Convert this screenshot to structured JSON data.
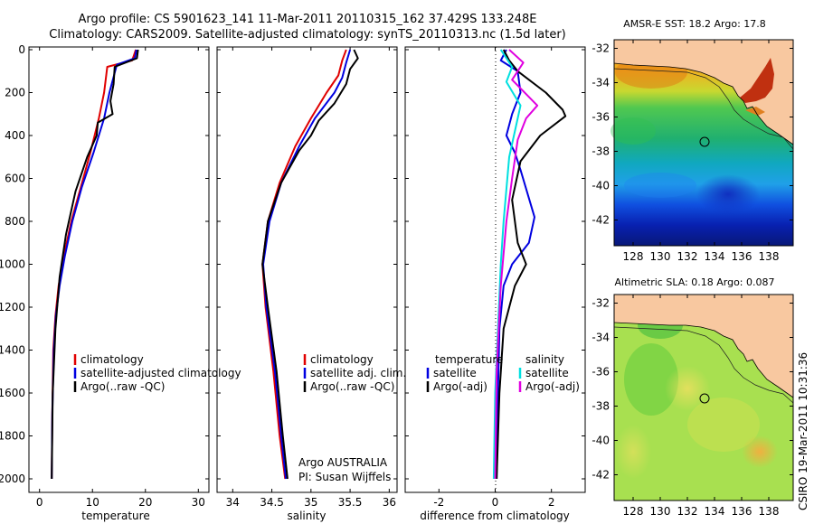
{
  "title": {
    "line1": "Argo profile: CS 5901623_141 11-Mar-2011 20110315_162 37.429S 133.248E",
    "line2": "Climatology: CARS2009. Satellite-adjusted climatology: synTS_20110313.nc (1.5d later)"
  },
  "panels": {
    "temperature": {
      "xlabel": "temperature",
      "xticks": [
        "0",
        "10",
        "20",
        "30"
      ],
      "legend": [
        "climatology",
        "satellite-adjusted climatology",
        "Argo(..raw -QC)"
      ]
    },
    "salinity": {
      "xlabel": "salinity",
      "xticks": [
        "34",
        "34.5",
        "35",
        "35.5",
        "36"
      ],
      "legend": [
        "climatology",
        "satellite adj. clim.",
        "Argo(..raw -QC)"
      ],
      "note1": "Argo AUSTRALIA",
      "note2": "PI: Susan Wijffels"
    },
    "difference": {
      "xlabel": "difference from climatology",
      "xticks": [
        "-2",
        "0",
        "2"
      ],
      "legend_temp_head": "temperature",
      "legend_temp": [
        "satellite",
        "Argo(-adj)"
      ],
      "legend_sal_head": "salinity",
      "legend_sal": [
        "satellite",
        "Argo(-adj)"
      ]
    },
    "yticks": [
      "0",
      "200",
      "400",
      "600",
      "800",
      "1000",
      "1200",
      "1400",
      "1600",
      "1800",
      "2000"
    ]
  },
  "maps": {
    "sst_title": "AMSR-E SST: 18.2 Argo: 17.8",
    "sla_title": "Altimetric SLA: 0.18 Argo: 0.087",
    "yticks": [
      "-32",
      "-34",
      "-36",
      "-38",
      "-40",
      "-42"
    ],
    "xticks": [
      "128",
      "130",
      "132",
      "134",
      "136",
      "138"
    ]
  },
  "credit": "CSIRO 19-Mar-2011 10:31:36",
  "colors": {
    "climatology": "#e00000",
    "satellite": "#0000e0",
    "argo": "#000000",
    "sal_satellite": "#00e0e0",
    "sal_argo": "#e000e0",
    "land": "#f8c8a0"
  },
  "chart_data": [
    {
      "type": "line",
      "xlabel": "temperature",
      "ylabel": "",
      "xlim": [
        -2,
        32
      ],
      "ylim": [
        2050,
        0
      ],
      "series": [
        {
          "name": "climatology",
          "x": [
            18.2,
            17.5,
            12.8,
            12.2,
            11.2,
            9.6,
            7.8,
            6.0,
            4.6,
            3.6,
            3.0,
            2.6,
            2.4,
            2.3
          ],
          "y": [
            0,
            50,
            80,
            200,
            320,
            480,
            640,
            800,
            960,
            1100,
            1240,
            1400,
            1700,
            2000
          ]
        },
        {
          "name": "satellite-adjusted climatology",
          "x": [
            18.3,
            18.0,
            14.6,
            13.2,
            12.2,
            10.2,
            8.0,
            6.2,
            4.8,
            3.8,
            3.1,
            2.7,
            2.4,
            2.3
          ],
          "y": [
            0,
            40,
            70,
            200,
            320,
            480,
            640,
            800,
            960,
            1100,
            1240,
            1400,
            1700,
            2000
          ]
        },
        {
          "name": "Argo(..raw -QC)",
          "x": [
            18.6,
            18.4,
            14.2,
            14.0,
            13.4,
            13.8,
            11.0,
            10.8,
            9.0,
            6.8,
            5.0,
            3.8,
            3.0,
            2.5,
            2.3
          ],
          "y": [
            0,
            40,
            80,
            160,
            240,
            300,
            340,
            400,
            500,
            660,
            860,
            1060,
            1300,
            1600,
            2000
          ]
        }
      ]
    },
    {
      "type": "line",
      "xlabel": "salinity",
      "ylabel": "",
      "xlim": [
        33.8,
        36.1
      ],
      "ylim": [
        2050,
        0
      ],
      "series": [
        {
          "name": "climatology",
          "x": [
            35.45,
            35.4,
            35.35,
            35.2,
            35.0,
            34.8,
            34.6,
            34.45,
            34.38,
            34.42,
            34.52,
            34.6,
            34.67
          ],
          "y": [
            0,
            50,
            120,
            200,
            320,
            450,
            620,
            800,
            1000,
            1200,
            1500,
            1800,
            2000
          ]
        },
        {
          "name": "satellite adj. clim.",
          "x": [
            35.5,
            35.45,
            35.4,
            35.3,
            35.05,
            34.85,
            34.62,
            34.47,
            34.39,
            34.43,
            34.54,
            34.62,
            34.68
          ],
          "y": [
            0,
            60,
            130,
            200,
            320,
            450,
            620,
            800,
            1000,
            1200,
            1500,
            1800,
            2000
          ]
        },
        {
          "name": "Argo(..raw -QC)",
          "x": [
            35.55,
            35.6,
            35.5,
            35.45,
            35.3,
            35.1,
            35.0,
            34.85,
            34.62,
            34.45,
            34.38,
            34.45,
            34.56,
            34.64,
            34.7
          ],
          "y": [
            0,
            40,
            90,
            160,
            250,
            330,
            400,
            470,
            620,
            800,
            1000,
            1200,
            1500,
            1800,
            2000
          ]
        }
      ]
    },
    {
      "type": "line",
      "xlabel": "difference from climatology",
      "ylabel": "",
      "xlim": [
        -3.2,
        3.2
      ],
      "ylim": [
        2050,
        0
      ],
      "series": [
        {
          "name": "temperature satellite",
          "x": [
            0.4,
            0.2,
            0.8,
            0.9,
            0.6,
            0.4,
            0.7,
            0.9,
            1.4,
            1.2,
            0.6,
            0.3,
            0.15,
            0.1,
            0.05
          ],
          "y": [
            0,
            50,
            100,
            200,
            300,
            400,
            480,
            560,
            780,
            900,
            1000,
            1100,
            1300,
            1600,
            2000
          ]
        },
        {
          "name": "temperature Argo(-adj)",
          "x": [
            0.3,
            0.5,
            0.8,
            1.8,
            2.4,
            2.5,
            1.6,
            0.9,
            0.6,
            0.8,
            1.1,
            0.7,
            0.3,
            0.15,
            0.05
          ],
          "y": [
            0,
            50,
            100,
            200,
            280,
            310,
            400,
            520,
            700,
            900,
            1000,
            1100,
            1300,
            1600,
            2000
          ]
        },
        {
          "name": "salinity satellite",
          "x": [
            0.2,
            0.6,
            0.4,
            0.9,
            0.8,
            0.5,
            0.3,
            0.2,
            0.1,
            0.0,
            -0.05
          ],
          "y": [
            0,
            80,
            150,
            260,
            320,
            500,
            800,
            1000,
            1300,
            1600,
            2000
          ]
        },
        {
          "name": "salinity Argo(-adj)",
          "x": [
            0.5,
            1.0,
            0.6,
            1.5,
            1.1,
            0.8,
            0.6,
            0.4,
            0.2,
            0.05,
            0.0
          ],
          "y": [
            0,
            60,
            140,
            260,
            320,
            420,
            600,
            800,
            1100,
            1500,
            2000
          ]
        }
      ]
    }
  ]
}
